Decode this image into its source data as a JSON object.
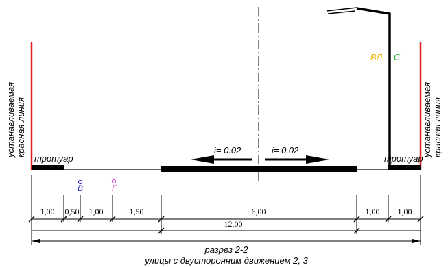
{
  "left_red_line_label": [
    "устанавливаемая",
    "красная линия"
  ],
  "right_red_line_label": [
    "устанавливаемая",
    "красная линия"
  ],
  "left_sidewalk_label": "тротуар",
  "right_sidewalk_label": "тротуар",
  "slope_left": "i= 0.02",
  "slope_right": "i= 0.02",
  "utility_vl": "ВЛ",
  "utility_s": "С",
  "utility_v": "В",
  "utility_g": "Г",
  "dimensions_top": [
    "1,00",
    "0,50",
    "1,00",
    "1,50",
    "6,00",
    "1,00",
    "1,00"
  ],
  "dimension_carriageway_total": "12,00",
  "caption": [
    "разрез 2-2",
    "улицы с двусторонним движением 2, 3"
  ],
  "colors": {
    "red_line": "#e02020",
    "vl": "#f0b400",
    "s": "#2fa52f",
    "v": "#3030c8",
    "g": "#d040d0"
  }
}
